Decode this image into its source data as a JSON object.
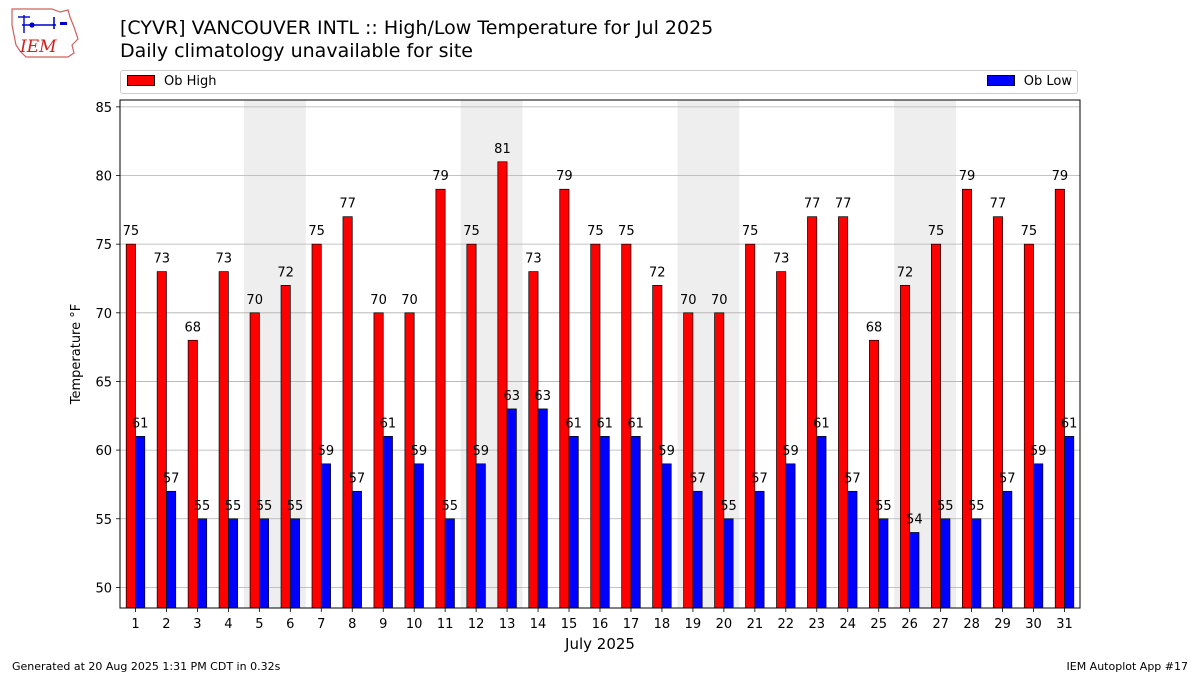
{
  "header": {
    "title": "[CYVR] VANCOUVER INTL :: High/Low Temperature for Jul 2025",
    "subtitle": "Daily climatology unavailable for site"
  },
  "logo": {
    "text": "IEM"
  },
  "legend": {
    "high_label": "Ob High",
    "low_label": "Ob Low"
  },
  "footer": {
    "left": "Generated at 20 Aug 2025 1:31 PM CDT in 0.32s",
    "right": "IEM Autoplot App #17"
  },
  "colors": {
    "high": "#ff0000",
    "low": "#0000ff",
    "weekend_shade": "#eeeeee",
    "grid": "#b0b0b0"
  },
  "chart_data": {
    "type": "bar",
    "title": "[CYVR] VANCOUVER INTL :: High/Low Temperature for Jul 2025",
    "subtitle": "Daily climatology unavailable for site",
    "xlabel": "July 2025",
    "ylabel": "Temperature °F",
    "ylim": [
      48.5,
      85.5
    ],
    "yticks": [
      50,
      55,
      60,
      65,
      70,
      75,
      80,
      85
    ],
    "grid": true,
    "legend_placement": "top",
    "categories": [
      "1",
      "2",
      "3",
      "4",
      "5",
      "6",
      "7",
      "8",
      "9",
      "10",
      "11",
      "12",
      "13",
      "14",
      "15",
      "16",
      "17",
      "18",
      "19",
      "20",
      "21",
      "22",
      "23",
      "24",
      "25",
      "26",
      "27",
      "28",
      "29",
      "30",
      "31"
    ],
    "shaded_days": [
      [
        5,
        6
      ],
      [
        12,
        13
      ],
      [
        19,
        20
      ],
      [
        26,
        27
      ]
    ],
    "series": [
      {
        "name": "Ob High",
        "color": "#ff0000",
        "values": [
          75,
          73,
          68,
          73,
          70,
          72,
          75,
          77,
          70,
          70,
          79,
          75,
          81,
          73,
          79,
          75,
          75,
          72,
          70,
          70,
          75,
          73,
          77,
          77,
          68,
          72,
          75,
          79,
          77,
          75,
          79
        ]
      },
      {
        "name": "Ob Low",
        "color": "#0000ff",
        "values": [
          61,
          57,
          55,
          55,
          55,
          55,
          59,
          57,
          61,
          59,
          55,
          59,
          63,
          63,
          61,
          61,
          61,
          59,
          57,
          55,
          57,
          59,
          61,
          57,
          55,
          54,
          55,
          55,
          57,
          59,
          61
        ]
      }
    ]
  }
}
